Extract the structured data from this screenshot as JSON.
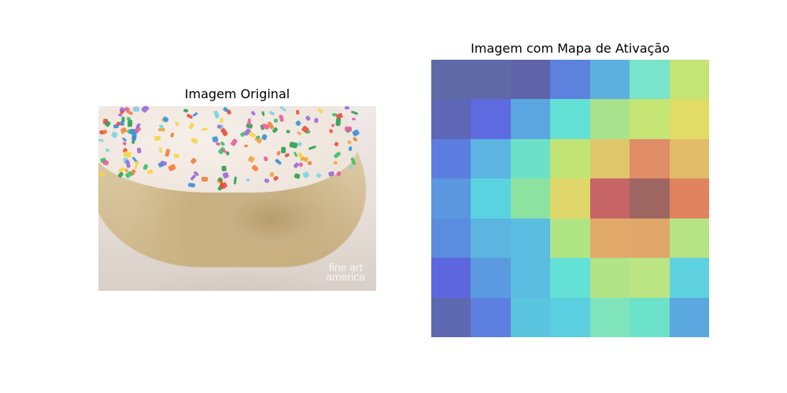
{
  "left_panel": {
    "title": "Imagem Original",
    "watermark_line1": "fine art",
    "watermark_line2": "america"
  },
  "right_panel": {
    "title": "Imagem com Mapa de Ativação",
    "grid_colors": [
      [
        "#5e69a6",
        "#5e69a6",
        "#5f63aa",
        "#5d82dd",
        "#5cb1de",
        "#79e4c9",
        "#c4e576"
      ],
      [
        "#5d67b5",
        "#5d6ae0",
        "#5ba6e0",
        "#63e1d4",
        "#a8e28c",
        "#c5e575",
        "#e0dc65"
      ],
      [
        "#5d7de1",
        "#5bb5e0",
        "#6de1c8",
        "#c2e475",
        "#e0c66a",
        "#e08d68",
        "#e1bc68"
      ],
      [
        "#5b98df",
        "#58d3df",
        "#8de29f",
        "#e0d76a",
        "#c76465",
        "#9e6662",
        "#e0835e"
      ],
      [
        "#5c8cdf",
        "#5bb5e0",
        "#5bbde0",
        "#b0e586",
        "#e1aa6b",
        "#e0a76b",
        "#b6e485"
      ],
      [
        "#5d66df",
        "#5a9be0",
        "#5bbde0",
        "#63e1d4",
        "#b1e387",
        "#bae582",
        "#5fd2df"
      ],
      [
        "#5d69b0",
        "#5c7fe0",
        "#5bc5e0",
        "#5bcfe0",
        "#7fe3bb",
        "#6de2ca",
        "#5ba7df"
      ]
    ]
  }
}
